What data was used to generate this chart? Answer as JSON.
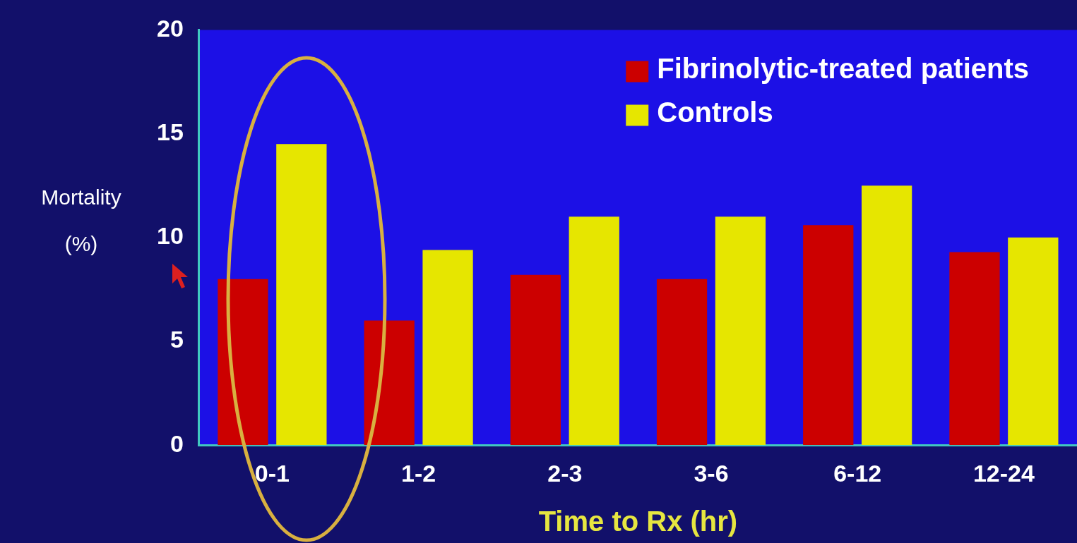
{
  "chart_data": {
    "type": "bar",
    "xlabel": "Time to Rx (hr)",
    "ylabel": "Mortality\n(%)",
    "categories": [
      "0-1",
      "1-2",
      "2-3",
      "3-6",
      "6-12",
      "12-24"
    ],
    "series": [
      {
        "name": "Fibrinolytic-treated patients",
        "color": "#cc0000",
        "values": [
          8.0,
          6.0,
          8.2,
          8.0,
          10.6,
          9.3
        ]
      },
      {
        "name": "Controls",
        "color": "#e6e600",
        "values": [
          14.5,
          9.4,
          11.0,
          11.0,
          12.5,
          10.0
        ]
      }
    ],
    "ylim": [
      0,
      20
    ],
    "yticks": [
      0,
      5,
      10,
      15,
      20
    ],
    "grid": false,
    "legend": "top right"
  }
}
